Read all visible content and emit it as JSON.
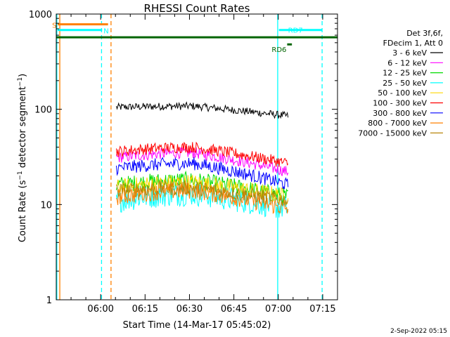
{
  "chart_data": {
    "type": "line",
    "title": "RHESSI Count Rates",
    "ylabel": "Count Rate (s⁻¹ detector segment⁻¹)",
    "ylabel_main": "Count Rate (s",
    "ylabel_sup1": "−1",
    "ylabel_mid": " detector segment",
    "ylabel_sup2": "−1",
    "ylabel_end": ")",
    "xlabel": "Start Time (14-Mar-17 05:45:02)",
    "yscale": "log",
    "ylim": [
      1,
      1000
    ],
    "xlim_minutes": [
      0,
      95
    ],
    "x_ticks": [
      {
        "label": "06:00",
        "minutes": 15
      },
      {
        "label": "06:15",
        "minutes": 30
      },
      {
        "label": "06:30",
        "minutes": 45
      },
      {
        "label": "06:45",
        "minutes": 60
      },
      {
        "label": "07:00",
        "minutes": 75
      },
      {
        "label": "07:15",
        "minutes": 90
      }
    ],
    "y_ticks": [
      {
        "label": "1",
        "value": 1
      },
      {
        "label": "10",
        "value": 10
      },
      {
        "label": "100",
        "value": 100
      },
      {
        "label": "1000",
        "value": 1000
      }
    ],
    "data_start_minutes": 20.3,
    "data_end_minutes": 78.3,
    "legend_header": [
      "Det 3f,6f,",
      "FDecim 1, Att 0"
    ],
    "series": [
      {
        "name": "3 - 6 keV",
        "color": "#000000",
        "start": 105,
        "mid": 108,
        "end": 85,
        "noise": 0.04
      },
      {
        "name": "6 - 12 keV",
        "color": "#ff00ff",
        "start": 31,
        "mid": 35,
        "end": 22,
        "noise": 0.06
      },
      {
        "name": "12 - 25 keV",
        "color": "#00dd00",
        "start": 16,
        "mid": 18,
        "end": 12,
        "noise": 0.09
      },
      {
        "name": "25 - 50 keV",
        "color": "#00ffff",
        "start": 11,
        "mid": 13,
        "end": 9,
        "noise": 0.13
      },
      {
        "name": "50 - 100 keV",
        "color": "#ffd700",
        "start": 15,
        "mid": 17,
        "end": 12,
        "noise": 0.09
      },
      {
        "name": "100 - 300 keV",
        "color": "#ff0000",
        "start": 36,
        "mid": 40,
        "end": 27,
        "noise": 0.06
      },
      {
        "name": "300 - 800 keV",
        "color": "#0000ff",
        "start": 24,
        "mid": 27,
        "end": 16,
        "noise": 0.07
      },
      {
        "name": "800 - 7000 keV",
        "color": "#ff8000",
        "start": 12,
        "mid": 14,
        "end": 9,
        "noise": 0.09
      },
      {
        "name": "7000 - 15000 keV",
        "color": "#b8860b",
        "start": 14,
        "mid": 15,
        "end": 11,
        "noise": 0.08
      }
    ],
    "status_bars": [
      {
        "label": "S",
        "color": "#ff8000",
        "x_start": 0.5,
        "x_end": 17.5,
        "level": 780
      },
      {
        "label": "N",
        "color": "#00ffff",
        "x_start": 0.5,
        "x_end": 15.5,
        "level": 680
      },
      {
        "label": "",
        "color": "#006400",
        "x_start": 0,
        "x_end": 95,
        "level": 570
      },
      {
        "label": "RD7",
        "color": "#00ffff",
        "x_start": 75.2,
        "x_end": 89.8,
        "level": 680
      },
      {
        "label": "RD6",
        "color": "#006400",
        "x_start": 78,
        "x_end": 79.6,
        "level": 480
      }
    ],
    "vertical_lines": [
      {
        "x": 0.2,
        "color": "#00ffff",
        "style": "solid"
      },
      {
        "x": 1.2,
        "color": "#ff8000",
        "style": "solid"
      },
      {
        "x": 15.3,
        "color": "#00ffff",
        "style": "dashed"
      },
      {
        "x": 18.5,
        "color": "#ff8000",
        "style": "dashed"
      },
      {
        "x": 74.8,
        "color": "#00ffff",
        "style": "solid"
      },
      {
        "x": 89.8,
        "color": "#00ffff",
        "style": "dashed"
      }
    ],
    "footer_timestamp": "2-Sep-2022 05:15"
  }
}
